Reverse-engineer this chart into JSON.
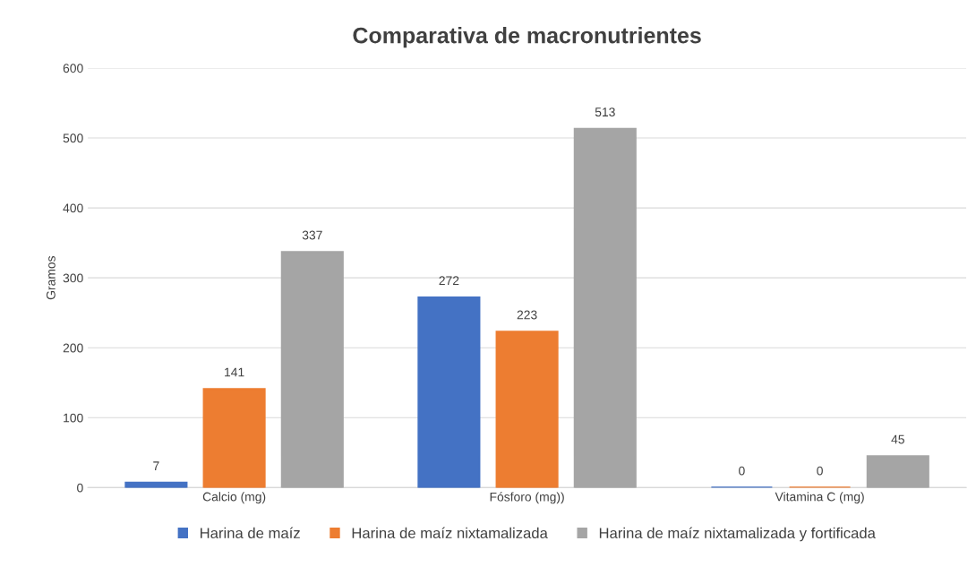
{
  "chart_data": {
    "type": "bar",
    "title": "Comparativa de macronutrientes",
    "ylabel": "Gramos",
    "categories": [
      "Calcio (mg)",
      "Fósforo (mg))",
      "Vitamina C (mg)"
    ],
    "series": [
      {
        "name": "Harina de maíz",
        "color": "#4472c4",
        "values": [
          7,
          272,
          0
        ]
      },
      {
        "name": "Harina de maíz nixtamalizada",
        "color": "#ed7d31",
        "values": [
          141,
          223,
          0
        ]
      },
      {
        "name": "Harina de maíz nixtamalizada y fortificada",
        "color": "#a5a5a5",
        "values": [
          337,
          513,
          45
        ]
      }
    ],
    "ylim": [
      0,
      600
    ],
    "yticks": [
      0,
      100,
      200,
      300,
      400,
      500,
      600
    ],
    "grid": "y",
    "legend": "bottom",
    "data_labels": true
  }
}
